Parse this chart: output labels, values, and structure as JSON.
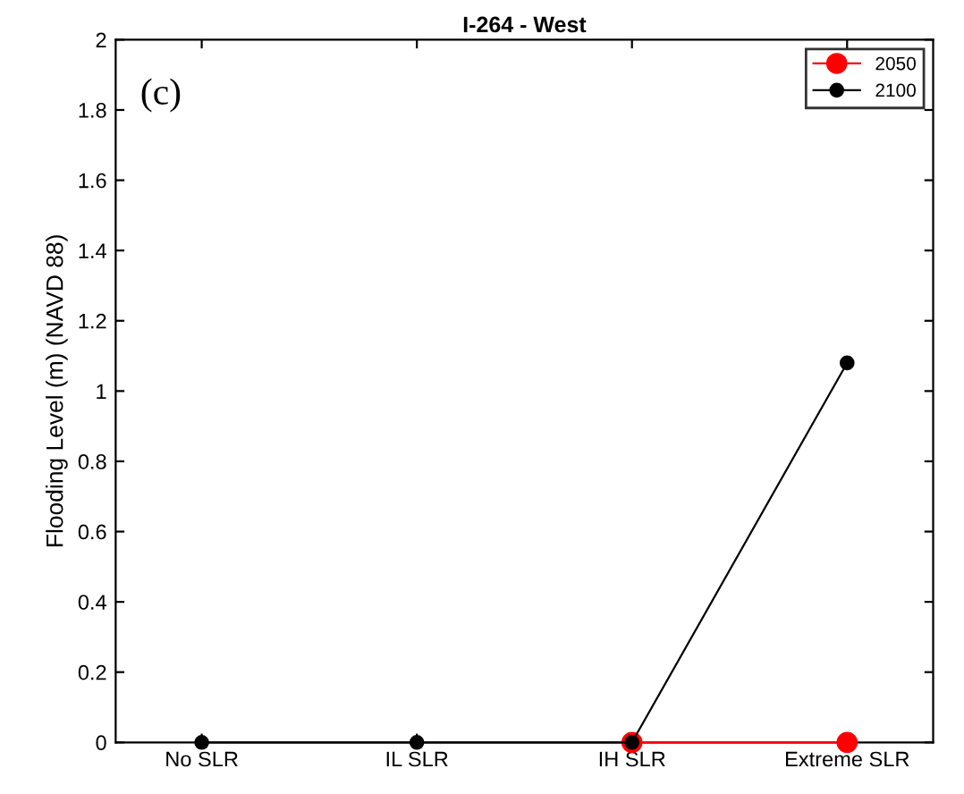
{
  "chart_data": {
    "type": "line",
    "title": "I-264 - West",
    "ylabel": "Flooding Level (m) (NAVD 88)",
    "categories": [
      "No SLR",
      "IL SLR",
      "IH SLR",
      "Extreme SLR"
    ],
    "series": [
      {
        "name": "2050",
        "color": "#ff0000",
        "values": [
          null,
          null,
          0,
          0
        ]
      },
      {
        "name": "2100",
        "color": "#000000",
        "values": [
          0,
          0,
          0,
          1.08
        ]
      }
    ],
    "ylim": [
      0,
      2
    ],
    "yticks": [
      0,
      0.2,
      0.4,
      0.6,
      0.8,
      1,
      1.2,
      1.4,
      1.6,
      1.8,
      2
    ],
    "annotations": [
      "(c)"
    ],
    "marker": "circle",
    "line_style": "solid",
    "legend": "top right",
    "grid": false
  }
}
